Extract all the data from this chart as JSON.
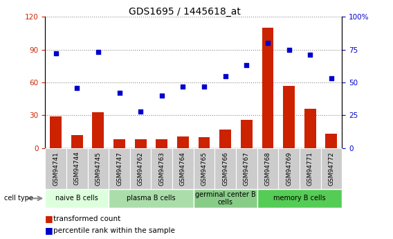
{
  "title": "GDS1695 / 1445618_at",
  "samples": [
    "GSM94741",
    "GSM94744",
    "GSM94745",
    "GSM94747",
    "GSM94762",
    "GSM94763",
    "GSM94764",
    "GSM94765",
    "GSM94766",
    "GSM94767",
    "GSM94768",
    "GSM94769",
    "GSM94771",
    "GSM94772"
  ],
  "bar_values": [
    29,
    12,
    33,
    8,
    8,
    8,
    11,
    10,
    17,
    26,
    110,
    57,
    36,
    13
  ],
  "scatter_values": [
    72,
    46,
    73,
    42,
    28,
    40,
    47,
    47,
    55,
    63,
    80,
    75,
    71,
    53
  ],
  "ylim_left": [
    0,
    120
  ],
  "ylim_right": [
    0,
    100
  ],
  "yticks_left": [
    0,
    30,
    60,
    90,
    120
  ],
  "yticks_right": [
    0,
    25,
    50,
    75,
    100
  ],
  "yticklabels_right": [
    "0",
    "25",
    "50",
    "75",
    "100%"
  ],
  "bar_color": "#cc2200",
  "scatter_color": "#0000cc",
  "cell_groups": [
    {
      "label": "naive B cells",
      "start": 0,
      "end": 3,
      "color": "#ddffdd"
    },
    {
      "label": "plasma B cells",
      "start": 3,
      "end": 7,
      "color": "#aaddaa"
    },
    {
      "label": "germinal center B\ncells",
      "start": 7,
      "end": 10,
      "color": "#88cc88"
    },
    {
      "label": "memory B cells",
      "start": 10,
      "end": 14,
      "color": "#55cc55"
    }
  ],
  "grid_color": "#888888",
  "tick_label_color_left": "#cc2200",
  "tick_label_color_right": "#0000cc",
  "background_plot": "#ffffff",
  "background_xtick": "#cccccc",
  "title_fontsize": 10,
  "axis_fontsize": 7.5,
  "xtick_fontsize": 6.5,
  "cell_fontsize": 7,
  "legend_fontsize": 7.5
}
